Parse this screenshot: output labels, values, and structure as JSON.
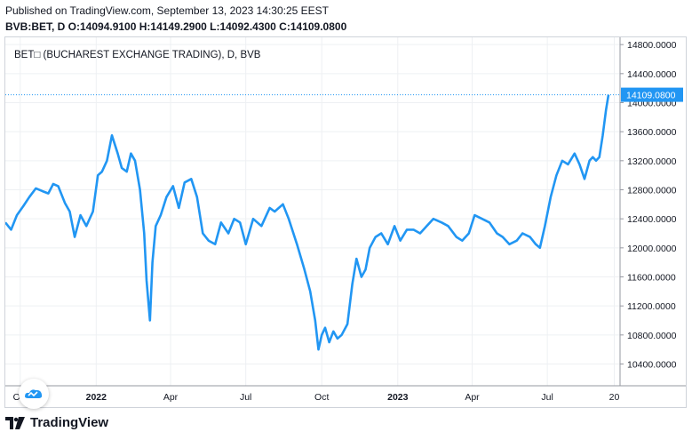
{
  "header": {
    "published": "Published on TradingView.com, September 13, 2023 14:30:25 EEST",
    "ohlc": "BVB:BET, D O:14094.9100 H:14149.2900 L:14092.4300 C:14109.0800"
  },
  "footer": {
    "brand": "TradingView"
  },
  "chart_data": {
    "type": "line",
    "title": "BET□ (BUCHAREST EXCHANGE TRADING), D, BVB",
    "line_color": "#2196f3",
    "grid": true,
    "ylim": [
      10100,
      14900
    ],
    "xlim": [
      "2021-09-13",
      "2023-09-27"
    ],
    "y_ticks": [
      "14800.0000",
      "14400.0000",
      "14000.0000",
      "13600.0000",
      "13200.0000",
      "12800.0000",
      "12400.0000",
      "12000.0000",
      "11600.0000",
      "11200.0000",
      "10800.0000",
      "10400.0000"
    ],
    "y_tick_values": [
      14800,
      14400,
      14000,
      13600,
      13200,
      12800,
      12400,
      12000,
      11600,
      11200,
      10800,
      10400
    ],
    "x_ticks": [
      "Oct",
      "2022",
      "Apr",
      "Jul",
      "Oct",
      "2023",
      "Apr",
      "Jul",
      "20"
    ],
    "x_tick_dates": [
      "2021-10-01",
      "2022-01-01",
      "2022-04-01",
      "2022-07-01",
      "2022-10-01",
      "2023-01-01",
      "2023-04-01",
      "2023-07-01",
      "2023-09-20"
    ],
    "last_value": 14109.08,
    "last_value_label": "14109.0800",
    "x": [
      "2021-09-13",
      "2021-09-20",
      "2021-09-27",
      "2021-10-05",
      "2021-10-12",
      "2021-10-20",
      "2021-10-28",
      "2021-11-04",
      "2021-11-10",
      "2021-11-16",
      "2021-11-24",
      "2021-11-30",
      "2021-12-06",
      "2021-12-13",
      "2021-12-20",
      "2021-12-28",
      "2022-01-03",
      "2022-01-08",
      "2022-01-14",
      "2022-01-20",
      "2022-01-27",
      "2022-02-01",
      "2022-02-07",
      "2022-02-12",
      "2022-02-17",
      "2022-02-23",
      "2022-02-28",
      "2022-03-03",
      "2022-03-07",
      "2022-03-10",
      "2022-03-14",
      "2022-03-20",
      "2022-03-27",
      "2022-04-04",
      "2022-04-11",
      "2022-04-18",
      "2022-04-26",
      "2022-05-03",
      "2022-05-10",
      "2022-05-17",
      "2022-05-25",
      "2022-06-01",
      "2022-06-10",
      "2022-06-17",
      "2022-06-24",
      "2022-07-01",
      "2022-07-10",
      "2022-07-20",
      "2022-07-30",
      "2022-08-05",
      "2022-08-15",
      "2022-08-22",
      "2022-09-01",
      "2022-09-10",
      "2022-09-17",
      "2022-09-23",
      "2022-09-27",
      "2022-10-01",
      "2022-10-05",
      "2022-10-10",
      "2022-10-15",
      "2022-10-20",
      "2022-10-25",
      "2022-11-01",
      "2022-11-07",
      "2022-11-12",
      "2022-11-18",
      "2022-11-23",
      "2022-11-28",
      "2022-12-05",
      "2022-12-12",
      "2022-12-20",
      "2022-12-28",
      "2023-01-04",
      "2023-01-12",
      "2023-01-20",
      "2023-01-28",
      "2023-02-05",
      "2023-02-13",
      "2023-02-23",
      "2023-03-03",
      "2023-03-13",
      "2023-03-20",
      "2023-03-28",
      "2023-04-04",
      "2023-04-13",
      "2023-04-22",
      "2023-05-01",
      "2023-05-08",
      "2023-05-16",
      "2023-05-25",
      "2023-06-01",
      "2023-06-10",
      "2023-06-17",
      "2023-06-22",
      "2023-06-28",
      "2023-07-05",
      "2023-07-12",
      "2023-07-19",
      "2023-07-26",
      "2023-08-03",
      "2023-08-09",
      "2023-08-15",
      "2023-08-21",
      "2023-08-25",
      "2023-08-29",
      "2023-09-02",
      "2023-09-06",
      "2023-09-10",
      "2023-09-13"
    ],
    "values": [
      12350,
      12250,
      12450,
      12580,
      12700,
      12820,
      12780,
      12750,
      12880,
      12850,
      12620,
      12500,
      12150,
      12450,
      12300,
      12500,
      13000,
      13050,
      13200,
      13550,
      13300,
      13100,
      13050,
      13300,
      13200,
      12800,
      12200,
      11550,
      11000,
      11800,
      12300,
      12450,
      12700,
      12850,
      12550,
      12900,
      12950,
      12700,
      12200,
      12100,
      12050,
      12350,
      12200,
      12400,
      12350,
      12050,
      12400,
      12300,
      12550,
      12500,
      12600,
      12400,
      12050,
      11700,
      11400,
      11000,
      10600,
      10800,
      10900,
      10700,
      10850,
      10750,
      10800,
      10950,
      11500,
      11850,
      11600,
      11700,
      12000,
      12150,
      12200,
      12050,
      12300,
      12100,
      12250,
      12250,
      12200,
      12300,
      12400,
      12350,
      12300,
      12150,
      12100,
      12200,
      12450,
      12400,
      12350,
      12200,
      12150,
      12050,
      12100,
      12200,
      12150,
      12050,
      12000,
      12300,
      12700,
      13000,
      13200,
      13150,
      13300,
      13150,
      12950,
      13200,
      13250,
      13200,
      13250,
      13550,
      13900,
      14109.08
    ]
  }
}
